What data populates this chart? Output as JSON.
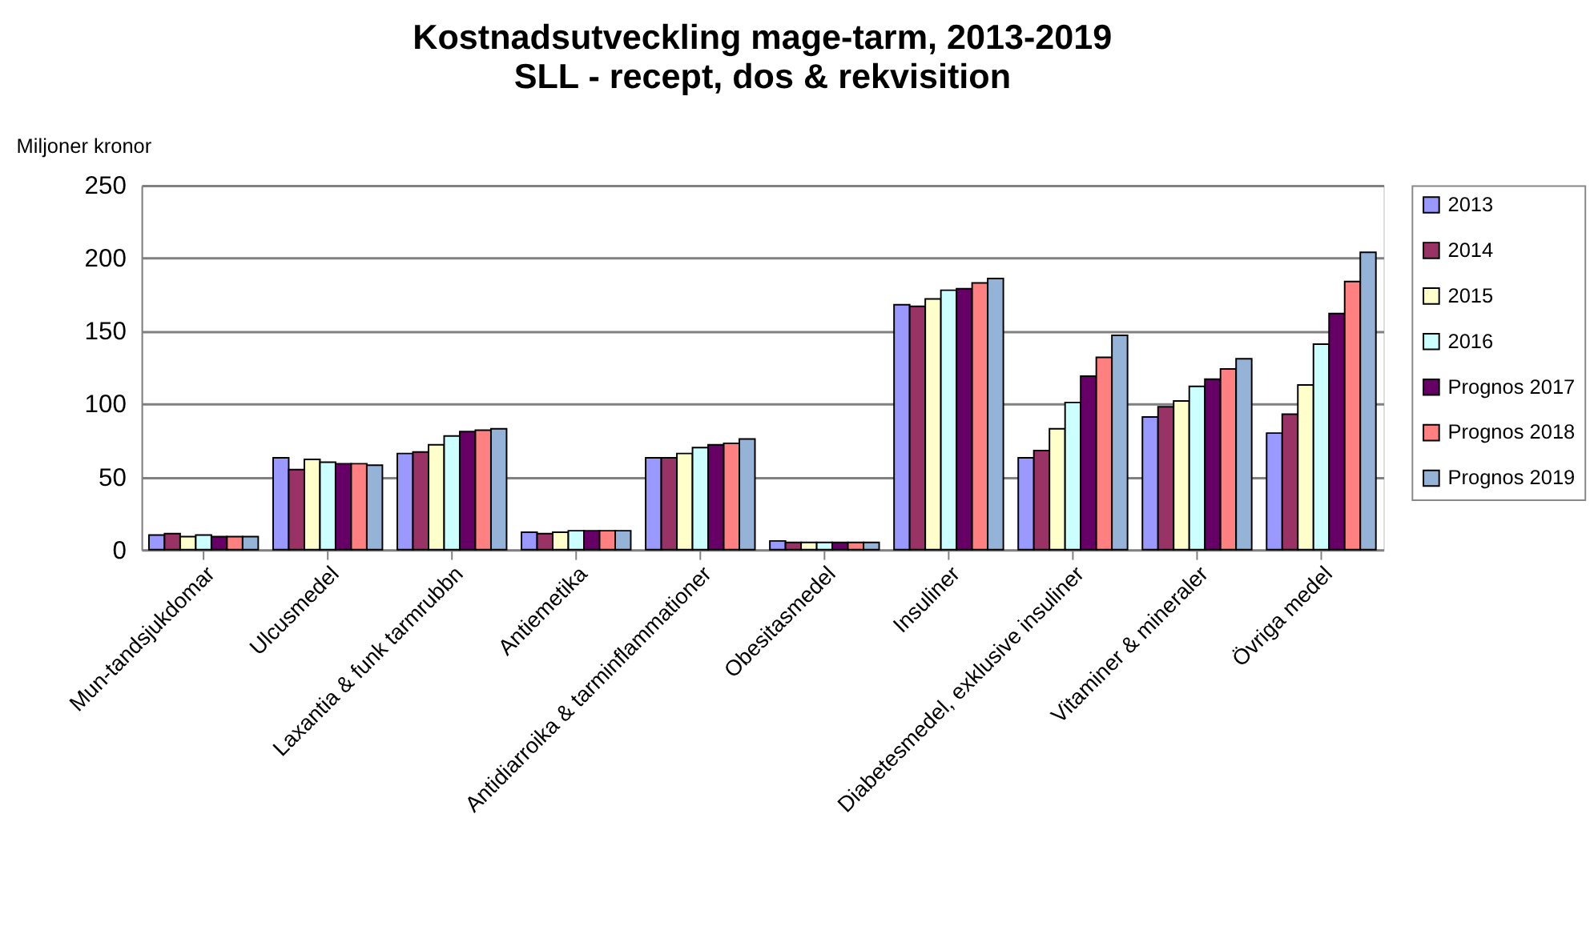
{
  "chart_data": {
    "type": "bar",
    "title": "Kostnadsutveckling mage-tarm, 2013-2019",
    "subtitle": "SLL - recept, dos & rekvisition",
    "ylabel": "Miljoner kronor",
    "categories": [
      "Mun-tandsjukdomar",
      "Ulcusmedel",
      "Laxantia & funk tarmrubbn",
      "Antiemetika",
      "Antidiarroika & tarminflammationer",
      "Obesitasmedel",
      "Insuliner",
      "Diabetesmedel, exklusive insuliner",
      "Vitaminer & mineraler",
      "Övriga medel"
    ],
    "series": [
      {
        "name": "2013",
        "color": "#9999ff",
        "values": [
          10,
          63,
          66,
          12,
          63,
          6,
          168,
          63,
          91,
          80
        ]
      },
      {
        "name": "2014",
        "color": "#993366",
        "values": [
          11,
          55,
          67,
          11,
          63,
          5,
          167,
          68,
          98,
          93
        ]
      },
      {
        "name": "2015",
        "color": "#ffffcc",
        "values": [
          9,
          62,
          72,
          12,
          66,
          5,
          172,
          83,
          102,
          113
        ]
      },
      {
        "name": "2016",
        "color": "#ccffff",
        "values": [
          10,
          60,
          78,
          13,
          70,
          5,
          178,
          101,
          112,
          141
        ]
      },
      {
        "name": "Prognos 2017",
        "color": "#660066",
        "values": [
          9,
          59,
          81,
          13,
          72,
          5,
          179,
          119,
          117,
          162
        ]
      },
      {
        "name": "Prognos 2018",
        "color": "#ff8080",
        "values": [
          9,
          59,
          82,
          13,
          73,
          5,
          183,
          132,
          124,
          184
        ]
      },
      {
        "name": "Prognos 2019",
        "color": "#95b3d7",
        "values": [
          9,
          58,
          83,
          13,
          76,
          5,
          186,
          147,
          131,
          204
        ]
      }
    ],
    "ylim": [
      0,
      250
    ],
    "yticks": [
      0,
      50,
      100,
      150,
      200,
      250
    ],
    "grid": "y",
    "legend": "right"
  }
}
